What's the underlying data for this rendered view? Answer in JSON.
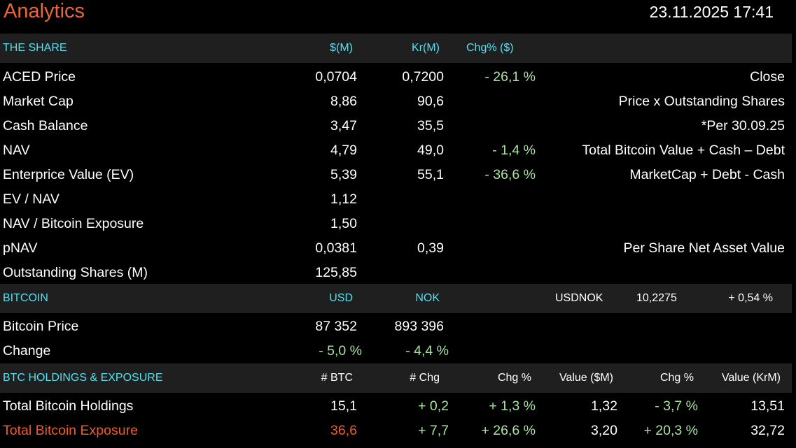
{
  "colors": {
    "title": "#e8663a",
    "header": "#56e0f0",
    "change": "#a7e3a0",
    "exposure": "#ef5b2f",
    "band_bg": "#1f1f1f"
  },
  "app": {
    "title": "Analytics",
    "datetime": "23.11.2025 17:41"
  },
  "share": {
    "header": {
      "label": "THE SHARE",
      "col1": "$(M)",
      "col2": "Kr(M)",
      "col3": "Chg% ($)"
    },
    "rows": [
      {
        "label": "ACED Price",
        "col1": "0,0704",
        "col2": "0,7200",
        "chg": "- 26,1 %",
        "note": "Close"
      },
      {
        "label": "Market Cap",
        "col1": "8,86",
        "col2": "90,6",
        "chg": "",
        "note": "Price x Outstanding Shares"
      },
      {
        "label": "Cash Balance",
        "col1": "3,47",
        "col2": "35,5",
        "chg": "",
        "note": "*Per 30.09.25"
      },
      {
        "label": "NAV",
        "col1": "4,79",
        "col2": "49,0",
        "chg": "- 1,4 %",
        "note": "Total Bitcoin Value + Cash – Debt"
      },
      {
        "label": "Enterprice Value (EV)",
        "col1": "5,39",
        "col2": "55,1",
        "chg": "- 36,6 %",
        "note": "MarketCap + Debt - Cash"
      },
      {
        "label": "EV / NAV",
        "col1": "1,12",
        "col2": "",
        "chg": "",
        "note": ""
      },
      {
        "label": "NAV / Bitcoin Exposure",
        "col1": "1,50",
        "col2": "",
        "chg": "",
        "note": ""
      },
      {
        "label": "pNAV",
        "col1": "0,0381",
        "col2": "0,39",
        "chg": "",
        "note": "Per Share Net Asset Value"
      },
      {
        "label": "Outstanding Shares (M)",
        "col1": "125,85",
        "col2": "",
        "chg": "",
        "note": ""
      }
    ]
  },
  "bitcoin": {
    "header": {
      "label": "BITCOIN",
      "col1": "USD",
      "col2": "NOK",
      "fx_label": "USDNOK",
      "fx_value": "10,2275",
      "fx_change": "+ 0,54 %"
    },
    "rows": [
      {
        "label": "Bitcoin Price",
        "col1": "87 352",
        "col2": "893 396"
      },
      {
        "label": "Change",
        "col1": "- 5,0 %",
        "col2": "- 4,4 %"
      }
    ]
  },
  "holdings": {
    "header": {
      "label": "BTC HOLDINGS & EXPOSURE",
      "c1": "# BTC",
      "c2": "# Chg",
      "c3": "Chg %",
      "c4": "Value ($M)",
      "c5": "Chg %",
      "c6": "Value (KrM)"
    },
    "rows": [
      {
        "label": "Total Bitcoin Holdings",
        "c1": "15,1",
        "c2": "+ 0,2",
        "c3": "+ 1,3 %",
        "c4": "1,32",
        "c5": "- 3,7 %",
        "c6": "13,51"
      },
      {
        "label": "Total Bitcoin Exposure",
        "c1": "36,6",
        "c2": "+ 7,7",
        "c3": "+ 26,6 %",
        "c4": "3,20",
        "c5": "+ 20,3 %",
        "c6": "32,72"
      }
    ]
  }
}
